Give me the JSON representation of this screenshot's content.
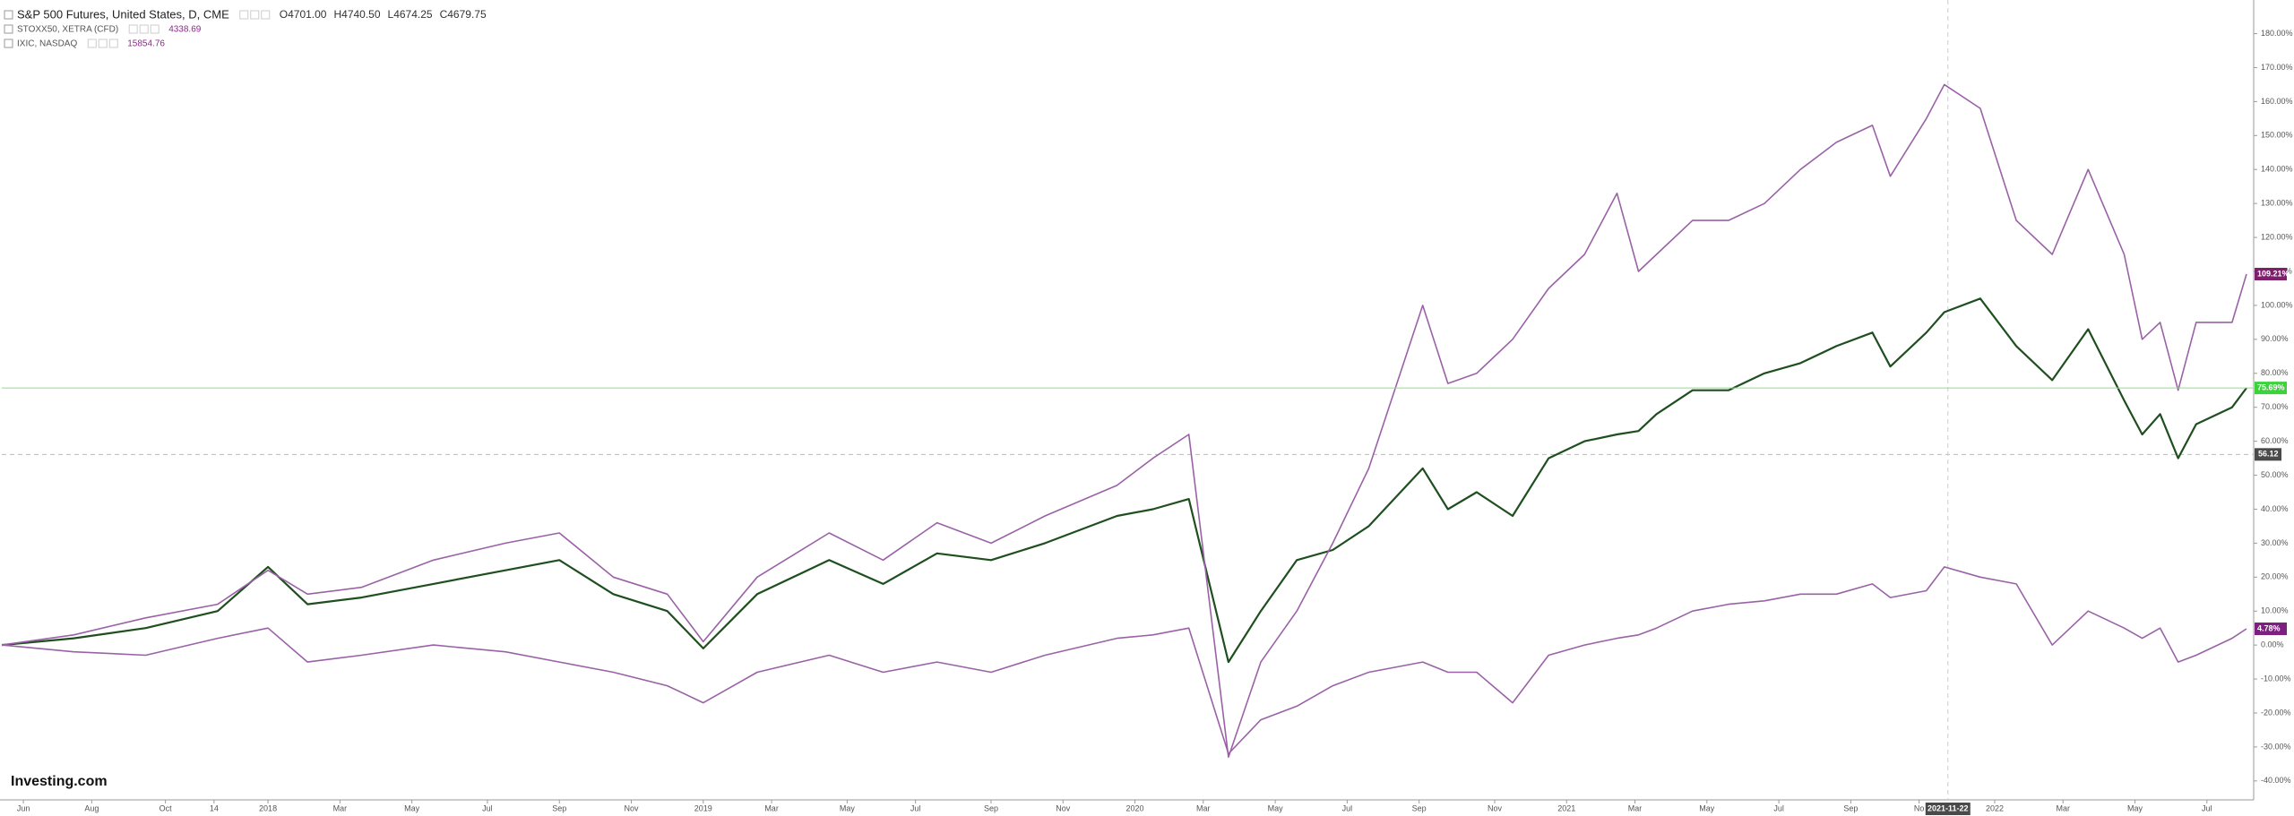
{
  "chart_data": {
    "type": "line",
    "x": [
      0,
      2,
      4,
      6,
      7.4,
      8.5,
      10,
      12,
      14,
      15.5,
      17,
      18.5,
      19.5,
      21,
      23,
      24.5,
      26,
      27.5,
      29,
      31,
      32,
      33,
      34.1,
      35,
      36,
      37,
      38,
      39.5,
      40.2,
      41,
      42,
      43,
      44,
      44.9,
      45.5,
      46,
      47,
      48,
      49,
      50,
      51,
      52,
      52.5,
      53.5,
      54,
      55,
      56,
      57,
      58,
      59,
      59.5,
      60,
      60.5,
      61,
      62,
      62.4
    ],
    "xlim": [
      0,
      62.6
    ],
    "xticks": [
      {
        "value": 0.6,
        "label": "Jun"
      },
      {
        "value": 2.5,
        "label": "Aug"
      },
      {
        "value": 4.55,
        "label": "Oct"
      },
      {
        "value": 5.9,
        "label": "14"
      },
      {
        "value": 7.4,
        "label": "2018"
      },
      {
        "value": 9.4,
        "label": "Mar"
      },
      {
        "value": 11.4,
        "label": "May"
      },
      {
        "value": 13.5,
        "label": "Jul"
      },
      {
        "value": 15.5,
        "label": "Sep"
      },
      {
        "value": 17.5,
        "label": "Nov"
      },
      {
        "value": 19.5,
        "label": "2019"
      },
      {
        "value": 21.4,
        "label": "Mar"
      },
      {
        "value": 23.5,
        "label": "May"
      },
      {
        "value": 25.4,
        "label": "Jul"
      },
      {
        "value": 27.5,
        "label": "Sep"
      },
      {
        "value": 29.5,
        "label": "Nov"
      },
      {
        "value": 31.5,
        "label": "2020"
      },
      {
        "value": 33.4,
        "label": "Mar"
      },
      {
        "value": 35.4,
        "label": "May"
      },
      {
        "value": 37.4,
        "label": "Jul"
      },
      {
        "value": 39.4,
        "label": "Sep"
      },
      {
        "value": 41.5,
        "label": "Nov"
      },
      {
        "value": 43.5,
        "label": "2021"
      },
      {
        "value": 45.4,
        "label": "Mar"
      },
      {
        "value": 47.4,
        "label": "May"
      },
      {
        "value": 49.4,
        "label": "Jul"
      },
      {
        "value": 51.4,
        "label": "Sep"
      },
      {
        "value": 53.3,
        "label": "No"
      },
      {
        "value": 55.4,
        "label": "2022"
      },
      {
        "value": 57.3,
        "label": "Mar"
      },
      {
        "value": 59.3,
        "label": "May"
      },
      {
        "value": 61.3,
        "label": "Jul"
      }
    ],
    "ylim": [
      -44,
      187
    ],
    "yticks": [
      {
        "value": -40,
        "label": "-40.00%"
      },
      {
        "value": -30,
        "label": "-30.00%"
      },
      {
        "value": -20,
        "label": "-20.00%"
      },
      {
        "value": -10,
        "label": "-10.00%"
      },
      {
        "value": 0,
        "label": "0.00%"
      },
      {
        "value": 10,
        "label": "10.00%"
      },
      {
        "value": 20,
        "label": "20.00%"
      },
      {
        "value": 30,
        "label": "30.00%"
      },
      {
        "value": 40,
        "label": "40.00%"
      },
      {
        "value": 50,
        "label": "50.00%"
      },
      {
        "value": 60,
        "label": "60.00%"
      },
      {
        "value": 70,
        "label": "70.00%"
      },
      {
        "value": 80,
        "label": "80.00%"
      },
      {
        "value": 90,
        "label": "90.00%"
      },
      {
        "value": 100,
        "label": "100.00%"
      },
      {
        "value": 110,
        "label": "110.00%"
      },
      {
        "value": 120,
        "label": "120.00%"
      },
      {
        "value": 130,
        "label": "130.00%"
      },
      {
        "value": 140,
        "label": "140.00%"
      },
      {
        "value": 150,
        "label": "150.00%"
      },
      {
        "value": 160,
        "label": "160.00%"
      },
      {
        "value": 170,
        "label": "170.00%"
      },
      {
        "value": 180,
        "label": "180.00%"
      }
    ],
    "grid": false,
    "series": [
      {
        "name": "S&P 500 Futures, United States, D, CME",
        "color": "#1f4f1f",
        "label_color": "#3cd23c",
        "quote": [
          "O4701.00",
          "H4740.50",
          "L4674.25",
          "C4679.75"
        ],
        "end_label": "75.69%",
        "values": [
          0,
          2,
          5,
          10,
          23,
          12,
          14,
          18,
          22,
          25,
          15,
          10,
          -1,
          15,
          25,
          18,
          27,
          25,
          30,
          38,
          40,
          43,
          -5,
          10,
          25,
          28,
          35,
          52,
          40,
          45,
          38,
          55,
          60,
          62,
          63,
          68,
          75,
          75,
          80,
          83,
          88,
          92,
          82,
          92,
          98,
          102,
          88,
          78,
          93,
          72,
          62,
          68,
          55,
          65,
          70,
          75.69
        ]
      },
      {
        "name": "STOXX50, XETRA (CFD)",
        "color": "#9a62a6",
        "label_color": "#7d1f80",
        "quote": [
          "4338.69"
        ],
        "end_label": "4.78%",
        "values": [
          0,
          -2,
          -3,
          2,
          5,
          -5,
          -3,
          0,
          -2,
          -5,
          -8,
          -12,
          -17,
          -8,
          -3,
          -8,
          -5,
          -8,
          -3,
          2,
          3,
          5,
          -32,
          -22,
          -18,
          -12,
          -8,
          -5,
          -8,
          -8,
          -17,
          -3,
          0,
          2,
          3,
          5,
          10,
          12,
          13,
          15,
          15,
          18,
          14,
          16,
          23,
          20,
          18,
          0,
          10,
          5,
          2,
          5,
          -5,
          -3,
          2,
          4.78
        ]
      },
      {
        "name": "IXIC, NASDAQ",
        "color": "#9a62a6",
        "label_color": "#7d1f6b",
        "quote": [
          "15854.76"
        ],
        "end_label": "109.21%",
        "values": [
          0,
          3,
          8,
          12,
          22,
          15,
          17,
          25,
          30,
          33,
          20,
          15,
          1,
          20,
          33,
          25,
          36,
          30,
          38,
          47,
          55,
          62,
          -33,
          -5,
          10,
          30,
          52,
          100,
          77,
          80,
          90,
          105,
          115,
          133,
          110,
          115,
          125,
          125,
          130,
          140,
          148,
          153,
          138,
          155,
          165,
          158,
          125,
          115,
          140,
          115,
          90,
          95,
          75,
          95,
          95,
          109.21
        ]
      }
    ],
    "crosshair": {
      "x": 54.1,
      "x_label": "2021-11-22",
      "y": 56.12,
      "y_label": "56.12"
    },
    "logo": "Investing.com"
  }
}
